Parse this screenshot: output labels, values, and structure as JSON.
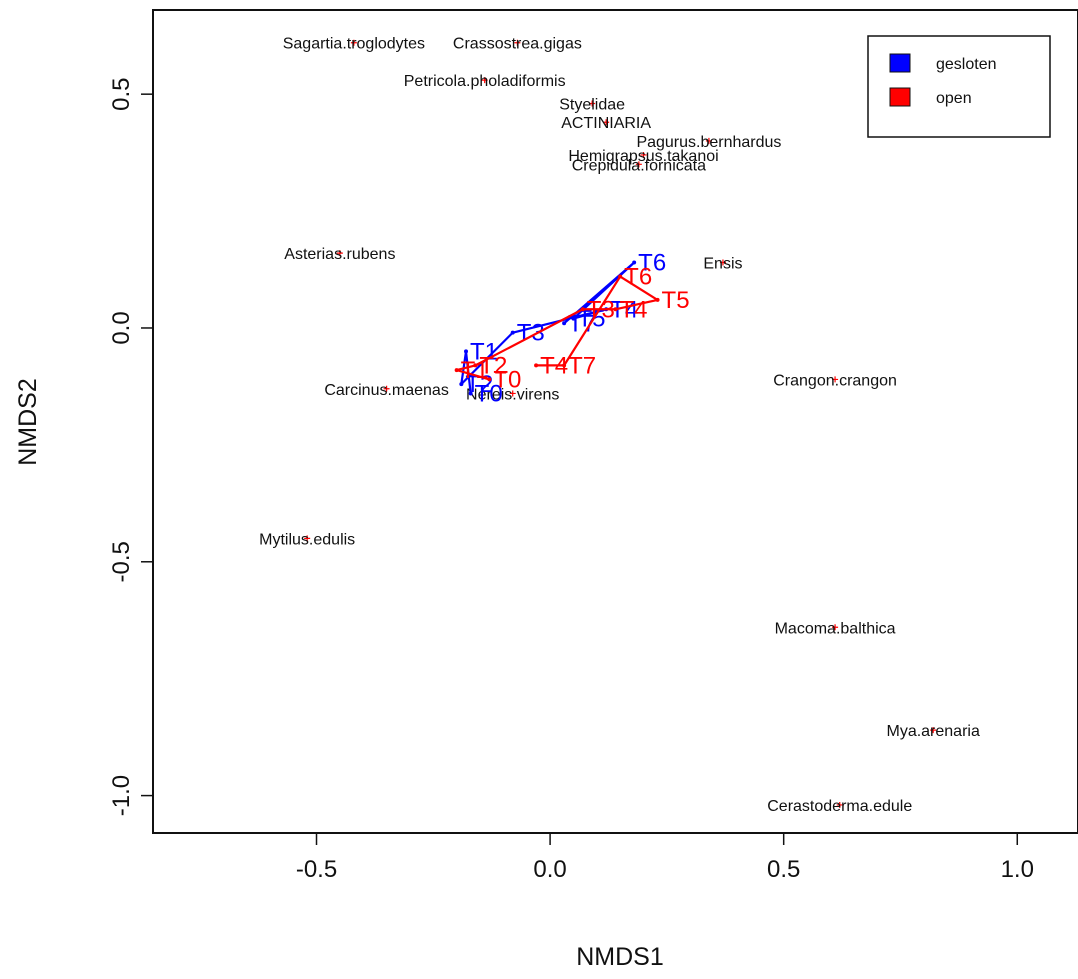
{
  "chart_data": {
    "type": "scatter",
    "xlabel": "NMDS1",
    "ylabel": "NMDS2",
    "xlim": [
      -0.85,
      1.13
    ],
    "ylim": [
      -1.08,
      0.68
    ],
    "xticks": [
      -0.5,
      0.0,
      0.5,
      1.0
    ],
    "xtick_labels": [
      "-0.5",
      "0.0",
      "0.5",
      "1.0"
    ],
    "yticks": [
      -1.0,
      -0.5,
      0.0,
      0.5
    ],
    "ytick_labels": [
      "-1.0",
      "-0.5",
      "0.0",
      "0.5"
    ],
    "legend": {
      "position": "top-right",
      "entries": [
        {
          "label": "gesloten",
          "color": "#0000ff"
        },
        {
          "label": "open",
          "color": "#ff0000"
        }
      ]
    },
    "species": [
      {
        "name": "Sagartia.troglodytes",
        "x": -0.42,
        "y": 0.61
      },
      {
        "name": "Crassostrea.gigas",
        "x": -0.07,
        "y": 0.61
      },
      {
        "name": "Petricola.pholadiformis",
        "x": -0.14,
        "y": 0.53
      },
      {
        "name": "Styelidae",
        "x": 0.09,
        "y": 0.48
      },
      {
        "name": "ACTINIARIA",
        "x": 0.12,
        "y": 0.44
      },
      {
        "name": "Pagurus.bernhardus",
        "x": 0.34,
        "y": 0.4
      },
      {
        "name": "Hemigrapsus.takanoi",
        "x": 0.2,
        "y": 0.37
      },
      {
        "name": "Crepidula.fornicata",
        "x": 0.19,
        "y": 0.35
      },
      {
        "name": "Asterias.rubens",
        "x": -0.45,
        "y": 0.16
      },
      {
        "name": "Ensis",
        "x": 0.37,
        "y": 0.14
      },
      {
        "name": "Crangon.crangon",
        "x": 0.61,
        "y": -0.11
      },
      {
        "name": "Carcinus.maenas",
        "x": -0.35,
        "y": -0.13
      },
      {
        "name": "Nereis.virens",
        "x": -0.08,
        "y": -0.14
      },
      {
        "name": "Mytilus.edulis",
        "x": -0.52,
        "y": -0.45
      },
      {
        "name": "Macoma.balthica",
        "x": 0.61,
        "y": -0.64
      },
      {
        "name": "Mya.arenaria",
        "x": 0.82,
        "y": -0.86
      },
      {
        "name": "Cerastoderma.edule",
        "x": 0.62,
        "y": -1.02
      }
    ],
    "series": [
      {
        "name": "gesloten",
        "color": "#0000ff",
        "points": [
          {
            "label": "T0",
            "x": -0.17,
            "y": -0.14
          },
          {
            "label": "T1",
            "x": -0.18,
            "y": -0.05
          },
          {
            "label": "T2",
            "x": -0.19,
            "y": -0.12
          },
          {
            "label": "T3",
            "x": -0.08,
            "y": -0.01
          },
          {
            "label": "T4",
            "x": 0.12,
            "y": 0.04
          },
          {
            "label": "T5",
            "x": 0.05,
            "y": 0.02
          },
          {
            "label": "T6",
            "x": 0.18,
            "y": 0.14
          },
          {
            "label": "T7",
            "x": 0.03,
            "y": 0.01
          }
        ]
      },
      {
        "name": "open",
        "color": "#ff0000",
        "points": [
          {
            "label": "T0",
            "x": -0.13,
            "y": -0.11
          },
          {
            "label": "T1",
            "x": -0.2,
            "y": -0.09
          },
          {
            "label": "T2",
            "x": -0.16,
            "y": -0.08
          },
          {
            "label": "T3",
            "x": 0.07,
            "y": 0.04
          },
          {
            "label": "T4",
            "x": 0.14,
            "y": 0.04
          },
          {
            "label": "T5",
            "x": 0.23,
            "y": 0.06
          },
          {
            "label": "T6",
            "x": 0.15,
            "y": 0.11
          },
          {
            "label": "T7",
            "x": 0.03,
            "y": -0.08
          },
          {
            "label": "T4",
            "x": -0.03,
            "y": -0.08
          }
        ]
      }
    ]
  }
}
